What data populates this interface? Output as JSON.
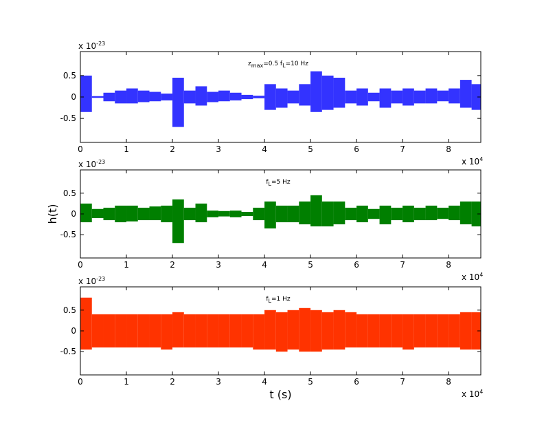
{
  "chart_data": [
    {
      "type": "range",
      "annotation": [
        "z",
        "max",
        "=0.5 f",
        "L",
        "=10 Hz"
      ],
      "y_multiplier": [
        "x 10",
        "-23"
      ],
      "x_multiplier": [
        "x 10",
        "4"
      ],
      "xlim": [
        0,
        8.7
      ],
      "ylim": [
        -1.06,
        1.06
      ],
      "xticks": [
        0,
        1,
        2,
        3,
        4,
        5,
        6,
        7,
        8
      ],
      "yticks": [
        -0.5,
        0,
        0.5
      ],
      "x": [
        0,
        0.25,
        0.5,
        0.75,
        1,
        1.25,
        1.5,
        1.75,
        2,
        2.25,
        2.5,
        2.75,
        3,
        3.25,
        3.5,
        3.75,
        4,
        4.25,
        4.5,
        4.75,
        5,
        5.25,
        5.5,
        5.75,
        6,
        6.25,
        6.5,
        6.75,
        7,
        7.25,
        7.5,
        7.75,
        8,
        8.25,
        8.5
      ],
      "series": [
        {
          "color": "#3333ff",
          "upper": [
            0.5,
            0.02,
            0.1,
            0.15,
            0.2,
            0.15,
            0.12,
            0.08,
            0.45,
            0.15,
            0.25,
            0.12,
            0.15,
            0.1,
            0.05,
            0.03,
            0.3,
            0.2,
            0.15,
            0.3,
            0.6,
            0.5,
            0.45,
            0.15,
            0.2,
            0.1,
            0.2,
            0.15,
            0.2,
            0.15,
            0.2,
            0.15,
            0.2,
            0.4,
            0.3
          ],
          "lower": [
            -0.35,
            -0.02,
            -0.1,
            -0.15,
            -0.15,
            -0.12,
            -0.1,
            -0.08,
            -0.7,
            -0.15,
            -0.2,
            -0.12,
            -0.1,
            -0.08,
            -0.05,
            -0.03,
            -0.3,
            -0.25,
            -0.15,
            -0.2,
            -0.35,
            -0.3,
            -0.25,
            -0.15,
            -0.2,
            -0.1,
            -0.25,
            -0.15,
            -0.2,
            -0.15,
            -0.15,
            -0.1,
            -0.15,
            -0.25,
            -0.3
          ]
        }
      ]
    },
    {
      "type": "range",
      "annotation": [
        "f",
        "L",
        "=5 Hz"
      ],
      "ylabel": "h(t)",
      "y_multiplier": [
        "x 10",
        "-23"
      ],
      "x_multiplier": [
        "x 10",
        "4"
      ],
      "xlim": [
        0,
        8.7
      ],
      "ylim": [
        -1.06,
        1.06
      ],
      "xticks": [
        0,
        1,
        2,
        3,
        4,
        5,
        6,
        7,
        8
      ],
      "yticks": [
        -0.5,
        0,
        0.5
      ],
      "x": [
        0,
        0.25,
        0.5,
        0.75,
        1,
        1.25,
        1.5,
        1.75,
        2,
        2.25,
        2.5,
        2.75,
        3,
        3.25,
        3.5,
        3.75,
        4,
        4.25,
        4.5,
        4.75,
        5,
        5.25,
        5.5,
        5.75,
        6,
        6.25,
        6.5,
        6.75,
        7,
        7.25,
        7.5,
        7.75,
        8,
        8.25,
        8.5
      ],
      "series": [
        {
          "color": "#007f00",
          "upper": [
            0.25,
            0.12,
            0.15,
            0.2,
            0.2,
            0.15,
            0.18,
            0.2,
            0.35,
            0.15,
            0.25,
            0.08,
            0.07,
            0.08,
            0.05,
            0.15,
            0.3,
            0.2,
            0.2,
            0.3,
            0.45,
            0.3,
            0.3,
            0.15,
            0.2,
            0.12,
            0.2,
            0.15,
            0.2,
            0.15,
            0.2,
            0.15,
            0.2,
            0.3,
            0.3
          ],
          "lower": [
            -0.2,
            -0.1,
            -0.15,
            -0.2,
            -0.18,
            -0.15,
            -0.15,
            -0.2,
            -0.7,
            -0.15,
            -0.2,
            -0.08,
            -0.06,
            -0.08,
            -0.05,
            -0.15,
            -0.35,
            -0.2,
            -0.2,
            -0.25,
            -0.3,
            -0.3,
            -0.25,
            -0.15,
            -0.2,
            -0.12,
            -0.25,
            -0.15,
            -0.2,
            -0.15,
            -0.15,
            -0.12,
            -0.15,
            -0.25,
            -0.3
          ]
        }
      ]
    },
    {
      "type": "range",
      "annotation": [
        "f",
        "L",
        "=1 Hz"
      ],
      "xlabel": "t (s)",
      "y_multiplier": [
        "x 10",
        "-23"
      ],
      "x_multiplier": [
        "x 10",
        "4"
      ],
      "xlim": [
        0,
        8.7
      ],
      "ylim": [
        -1.06,
        1.06
      ],
      "xticks": [
        0,
        1,
        2,
        3,
        4,
        5,
        6,
        7,
        8
      ],
      "yticks": [
        -0.5,
        0,
        0.5
      ],
      "x": [
        0,
        0.25,
        0.5,
        0.75,
        1,
        1.25,
        1.5,
        1.75,
        2,
        2.25,
        2.5,
        2.75,
        3,
        3.25,
        3.5,
        3.75,
        4,
        4.25,
        4.5,
        4.75,
        5,
        5.25,
        5.5,
        5.75,
        6,
        6.25,
        6.5,
        6.75,
        7,
        7.25,
        7.5,
        7.75,
        8,
        8.25,
        8.5
      ],
      "series": [
        {
          "color": "#ff3300",
          "upper": [
            0.8,
            0.4,
            0.4,
            0.4,
            0.4,
            0.4,
            0.4,
            0.4,
            0.45,
            0.4,
            0.4,
            0.4,
            0.4,
            0.4,
            0.4,
            0.4,
            0.5,
            0.45,
            0.5,
            0.55,
            0.5,
            0.45,
            0.5,
            0.45,
            0.4,
            0.4,
            0.4,
            0.4,
            0.4,
            0.4,
            0.4,
            0.4,
            0.4,
            0.45,
            0.45
          ],
          "lower": [
            -0.45,
            -0.4,
            -0.4,
            -0.4,
            -0.4,
            -0.4,
            -0.4,
            -0.45,
            -0.4,
            -0.4,
            -0.4,
            -0.4,
            -0.4,
            -0.4,
            -0.4,
            -0.45,
            -0.45,
            -0.5,
            -0.45,
            -0.5,
            -0.5,
            -0.45,
            -0.45,
            -0.4,
            -0.4,
            -0.4,
            -0.4,
            -0.4,
            -0.45,
            -0.4,
            -0.4,
            -0.4,
            -0.4,
            -0.45,
            -0.45
          ]
        }
      ]
    }
  ]
}
